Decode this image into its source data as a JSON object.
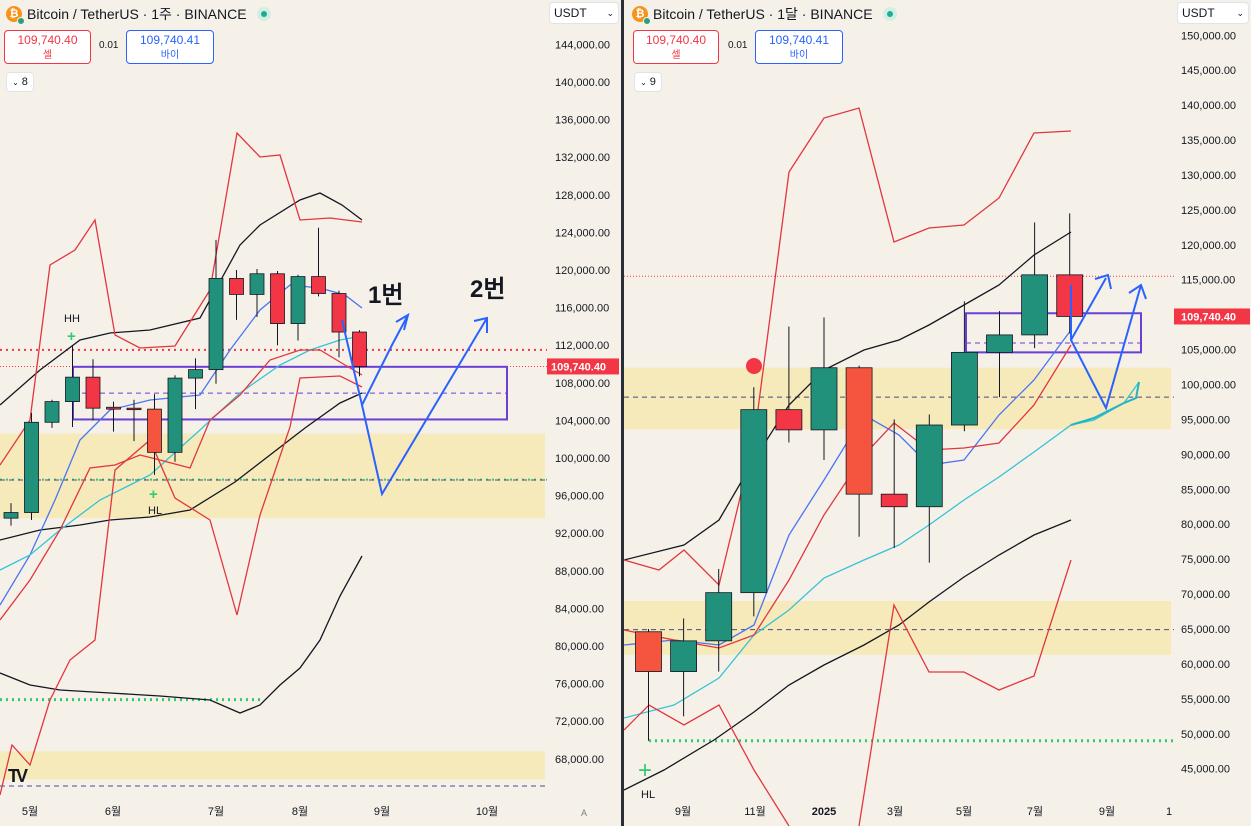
{
  "left": {
    "header": {
      "title": "Bitcoin / TetherUS · 1주 · BINANCE"
    },
    "sell": {
      "price": "109,740.40",
      "label": "셀"
    },
    "buy": {
      "price": "109,740.41",
      "label": "바이"
    },
    "spread": "0.01",
    "indicators_count": "8",
    "currency": "USDT",
    "price_tag": "109,740.40",
    "annotations": [
      "1번",
      "2번"
    ],
    "swing_labels": [
      "HH",
      "HL"
    ],
    "auto_label": "A"
  },
  "right": {
    "header": {
      "title": "Bitcoin / TetherUS · 1달 · BINANCE"
    },
    "sell": {
      "price": "109,740.40",
      "label": "셀"
    },
    "buy": {
      "price": "109,740.41",
      "label": "바이"
    },
    "spread": "0.01",
    "indicators_count": "9",
    "currency": "USDT",
    "price_tag": "109,740.40",
    "swing_labels": [
      "HL"
    ]
  },
  "colors": {
    "bg": "#f6f1e8",
    "up": "#22917b",
    "down": "#f23645",
    "down_alt": "#f5553f",
    "bb": "#e1363f",
    "ema_blue": "#4a74f2",
    "ema_cyan": "#34c3d8",
    "ma_black": "#131722",
    "zone": "#f6e8b1",
    "box": "#6b3fd6",
    "arrow": "#2962ff",
    "green_dot": "#2ecc71"
  },
  "chart_data": [
    {
      "type": "candlestick",
      "title": "Bitcoin / TetherUS · 1주 · BINANCE",
      "timeframe": "1주",
      "yaxis": {
        "min": 64000,
        "max": 148000,
        "ticks": [
          68000,
          72000,
          76000,
          80000,
          84000,
          88000,
          92000,
          96000,
          100000,
          104000,
          108000,
          112000,
          116000,
          120000,
          124000,
          128000,
          132000,
          136000,
          140000,
          144000
        ]
      },
      "xaxis": {
        "ticks": [
          "5월",
          "6월",
          "7월",
          "8월",
          "9월",
          "10월"
        ]
      },
      "last_price": 109740.4,
      "candles": [
        {
          "i": 0,
          "o": 93600,
          "h": 95200,
          "l": 92800,
          "c": 94200
        },
        {
          "i": 1,
          "o": 94200,
          "h": 104800,
          "l": 93400,
          "c": 103800
        },
        {
          "i": 2,
          "o": 103800,
          "h": 106200,
          "l": 103200,
          "c": 106000
        },
        {
          "i": 3,
          "o": 106000,
          "h": 111900,
          "l": 103300,
          "c": 108600
        },
        {
          "i": 4,
          "o": 108600,
          "h": 110500,
          "l": 104000,
          "c": 105300
        },
        {
          "i": 5,
          "o": 105400,
          "h": 106000,
          "l": 102800,
          "c": 105200
        },
        {
          "i": 6,
          "o": 105300,
          "h": 106200,
          "l": 101800,
          "c": 105200
        },
        {
          "i": 7,
          "o": 105200,
          "h": 106800,
          "l": 98200,
          "c": 100600
        },
        {
          "i": 8,
          "o": 100600,
          "h": 108800,
          "l": 99600,
          "c": 108500
        },
        {
          "i": 9,
          "o": 108500,
          "h": 110600,
          "l": 105200,
          "c": 109400
        },
        {
          "i": 10,
          "o": 109400,
          "h": 123200,
          "l": 107900,
          "c": 119100
        },
        {
          "i": 11,
          "o": 119100,
          "h": 120000,
          "l": 114700,
          "c": 117400
        },
        {
          "i": 12,
          "o": 117400,
          "h": 120100,
          "l": 115000,
          "c": 119600
        },
        {
          "i": 13,
          "o": 119600,
          "h": 119900,
          "l": 112000,
          "c": 114300
        },
        {
          "i": 14,
          "o": 114300,
          "h": 119500,
          "l": 112500,
          "c": 119300
        },
        {
          "i": 15,
          "o": 119300,
          "h": 124500,
          "l": 117200,
          "c": 117500
        },
        {
          "i": 16,
          "o": 117500,
          "h": 117800,
          "l": 110700,
          "c": 113400
        },
        {
          "i": 17,
          "o": 113400,
          "h": 113600,
          "l": 108700,
          "c": 109740
        }
      ],
      "zones": [
        {
          "from": 93600,
          "to": 102600
        },
        {
          "from": 65800,
          "to": 68800
        }
      ],
      "box": {
        "from": 104100,
        "to": 109700
      },
      "levels": {
        "red_dotted": [
          111500,
          109740
        ],
        "green_dotted": [
          97700,
          74300
        ]
      },
      "scenarios": [
        "1번",
        "2번"
      ]
    },
    {
      "type": "candlestick",
      "title": "Bitcoin / TetherUS · 1달 · BINANCE",
      "timeframe": "1달",
      "yaxis": {
        "min": 42000,
        "max": 152000,
        "ticks": [
          45000,
          50000,
          55000,
          60000,
          65000,
          70000,
          75000,
          80000,
          85000,
          90000,
          95000,
          100000,
          105000,
          110000,
          115000,
          120000,
          125000,
          130000,
          135000,
          140000,
          145000,
          150000
        ]
      },
      "xaxis": {
        "ticks": [
          "9월",
          "11월",
          "2025",
          "3월",
          "5월",
          "7월",
          "9월",
          "1"
        ]
      },
      "last_price": 109740.4,
      "candles": [
        {
          "m": "2024-08",
          "o": 64600,
          "h": 65000,
          "l": 49000,
          "c": 58900
        },
        {
          "m": "2024-09",
          "o": 58900,
          "h": 66500,
          "l": 52500,
          "c": 63300
        },
        {
          "m": "2024-10",
          "o": 63300,
          "h": 73600,
          "l": 58900,
          "c": 70200
        },
        {
          "m": "2024-11",
          "o": 70200,
          "h": 99600,
          "l": 66800,
          "c": 96400
        },
        {
          "m": "2024-12",
          "o": 96400,
          "h": 108300,
          "l": 91700,
          "c": 93500
        },
        {
          "m": "2025-01",
          "o": 93500,
          "h": 109600,
          "l": 89200,
          "c": 102400
        },
        {
          "m": "2025-02",
          "o": 102400,
          "h": 102700,
          "l": 78200,
          "c": 84300
        },
        {
          "m": "2025-03",
          "o": 84300,
          "h": 95000,
          "l": 76600,
          "c": 82500
        },
        {
          "m": "2025-04",
          "o": 82500,
          "h": 95700,
          "l": 74500,
          "c": 94200
        },
        {
          "m": "2025-05",
          "o": 94200,
          "h": 111900,
          "l": 93300,
          "c": 104600
        },
        {
          "m": "2025-06",
          "o": 104600,
          "h": 110500,
          "l": 98200,
          "c": 107100
        },
        {
          "m": "2025-07",
          "o": 107100,
          "h": 123200,
          "l": 105200,
          "c": 115700
        },
        {
          "m": "2025-08",
          "o": 115700,
          "h": 124500,
          "l": 107300,
          "c": 109740
        }
      ],
      "zones": [
        {
          "from": 93600,
          "to": 102400
        },
        {
          "from": 61300,
          "to": 69000
        }
      ],
      "box": {
        "from": 104600,
        "to": 110200
      },
      "levels": {
        "red_dotted": [
          115500
        ],
        "green_dotted": [
          49000
        ],
        "dashed": [
          98200,
          64900
        ]
      }
    }
  ]
}
